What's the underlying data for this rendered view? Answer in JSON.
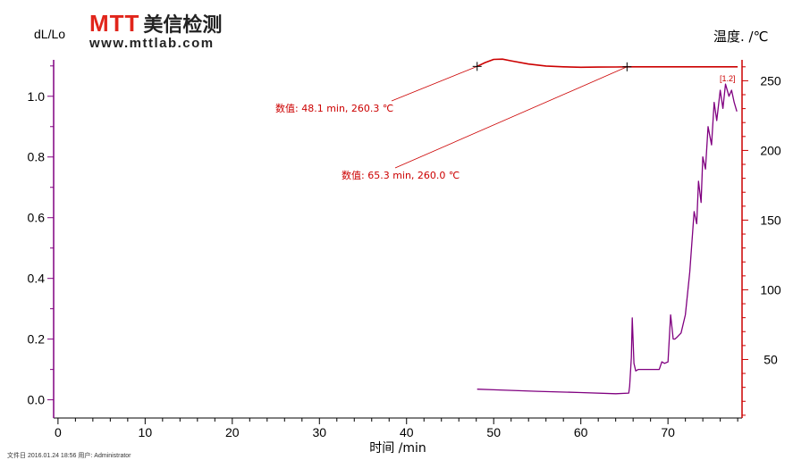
{
  "logo": {
    "mark": "MTT",
    "cn": "美信检测",
    "url": "www.mttlab.com"
  },
  "footer": "文件日 2016.01.24 18:56 用户: Administrator",
  "colors": {
    "left_axis": "#800080",
    "right_axis": "#cc0000",
    "expansion": "#800080",
    "temperature": "#cc0000"
  },
  "chart_data": {
    "type": "line",
    "xlabel": "时间 /min",
    "ylabel": "dL/Lo",
    "y2label": "温度. /℃",
    "xlim": [
      -0.5,
      78.5
    ],
    "ylim": [
      -0.06,
      1.12
    ],
    "y2lim": [
      8,
      265
    ],
    "x_ticks": [
      0,
      10,
      20,
      30,
      40,
      50,
      60,
      70
    ],
    "y_ticks": [
      0.0,
      0.2,
      0.4,
      0.6,
      0.8,
      1.0
    ],
    "y2_ticks": [
      50,
      100,
      150,
      200,
      250
    ],
    "series": [
      {
        "axis": "y2",
        "x": [
          48.1,
          49,
          50,
          51,
          52,
          54,
          56,
          58,
          60,
          62,
          64,
          65.3,
          68,
          70,
          72,
          74,
          76,
          77,
          77.5,
          78
        ],
        "values": [
          260.3,
          263.0,
          265.3,
          265.5,
          264.3,
          262.0,
          260.6,
          260.0,
          259.7,
          259.8,
          259.9,
          260.0,
          260.0,
          260.0,
          260.0,
          260.0,
          260.0,
          260.0,
          260.0,
          260.0
        ]
      },
      {
        "axis": "y",
        "x": [
          48.1,
          50,
          55,
          60,
          64,
          65.5,
          65.6,
          65.8,
          65.9,
          66.1,
          66.3,
          66.6,
          68,
          69,
          69.3,
          69.6,
          70,
          70.3,
          70.6,
          70.8,
          71,
          71.5,
          72,
          72.5,
          73,
          73.3,
          73.5,
          73.8,
          74,
          74.3,
          74.6,
          75,
          75.3,
          75.6,
          76,
          76.3,
          76.6,
          77,
          77.3,
          77.6,
          77.9
        ],
        "values": [
          0.035,
          0.033,
          0.028,
          0.024,
          0.02,
          0.022,
          0.045,
          0.14,
          0.27,
          0.12,
          0.095,
          0.1,
          0.1,
          0.1,
          0.125,
          0.12,
          0.125,
          0.28,
          0.2,
          0.2,
          0.205,
          0.22,
          0.28,
          0.42,
          0.62,
          0.58,
          0.72,
          0.65,
          0.8,
          0.76,
          0.9,
          0.84,
          0.98,
          0.92,
          1.02,
          0.96,
          1.04,
          1.0,
          1.02,
          0.98,
          0.95
        ]
      }
    ],
    "annotations": [
      {
        "text": "数值: 48.1 min, 260.3 ℃",
        "x": 48.1,
        "y2": 260.3
      },
      {
        "text": "数值: 65.3 min, 260.0 ℃",
        "x": 65.3,
        "y2": 260.0
      }
    ],
    "marker_labels": [
      {
        "text": "[1.2]"
      }
    ],
    "grid": false
  }
}
